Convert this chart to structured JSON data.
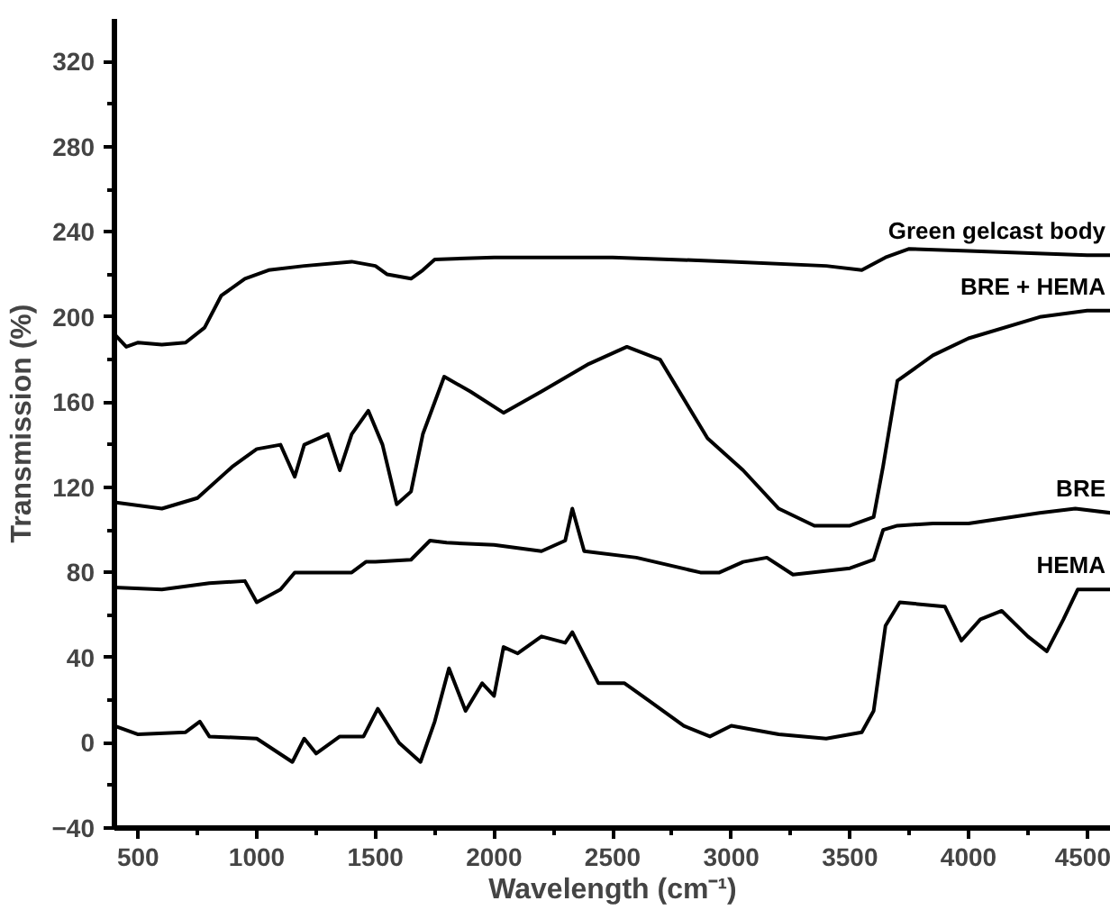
{
  "chart_data": {
    "type": "line",
    "xlabel": "Wavelength (cm⁻¹)",
    "ylabel": "Transmission (%)",
    "xlim": [
      400,
      4600
    ],
    "ylim": [
      -40,
      340
    ],
    "xticks": [
      500,
      1000,
      1500,
      2000,
      2500,
      3000,
      3500,
      4000,
      4500
    ],
    "yticks": [
      -40,
      0,
      40,
      80,
      120,
      160,
      200,
      240,
      280,
      320
    ],
    "grid": false,
    "legend": false,
    "marker": "none",
    "line_style": "solid",
    "series": [
      {
        "name": "Green gelcast body",
        "color": "#000000",
        "x": [
          400,
          450,
          500,
          600,
          700,
          780,
          850,
          950,
          1050,
          1200,
          1400,
          1500,
          1550,
          1650,
          1700,
          1750,
          2000,
          2500,
          3000,
          3400,
          3550,
          3650,
          3750,
          4000,
          4500,
          4600
        ],
        "values": [
          192,
          186,
          188,
          187,
          188,
          195,
          210,
          218,
          222,
          224,
          226,
          224,
          220,
          218,
          222,
          227,
          228,
          228,
          226,
          224,
          222,
          228,
          232,
          231,
          229,
          229
        ]
      },
      {
        "name": "BRE + HEMA",
        "color": "#000000",
        "x": [
          400,
          600,
          750,
          900,
          1000,
          1100,
          1160,
          1200,
          1300,
          1350,
          1400,
          1470,
          1530,
          1590,
          1650,
          1700,
          1790,
          1900,
          2040,
          2200,
          2400,
          2560,
          2700,
          2900,
          3050,
          3200,
          3350,
          3500,
          3600,
          3640,
          3700,
          3850,
          4000,
          4300,
          4500,
          4600
        ],
        "values": [
          113,
          110,
          115,
          130,
          138,
          140,
          125,
          140,
          145,
          128,
          145,
          156,
          140,
          112,
          118,
          145,
          172,
          165,
          155,
          165,
          178,
          186,
          180,
          143,
          128,
          110,
          102,
          102,
          106,
          130,
          170,
          182,
          190,
          200,
          203,
          203
        ]
      },
      {
        "name": "BRE",
        "color": "#000000",
        "x": [
          400,
          600,
          800,
          950,
          1000,
          1100,
          1160,
          1200,
          1400,
          1460,
          1500,
          1650,
          1730,
          1800,
          2000,
          2200,
          2300,
          2330,
          2380,
          2600,
          2870,
          2950,
          3050,
          3150,
          3260,
          3500,
          3600,
          3640,
          3700,
          3850,
          4000,
          4300,
          4450,
          4600
        ],
        "values": [
          73,
          72,
          75,
          76,
          66,
          72,
          80,
          80,
          80,
          85,
          85,
          86,
          95,
          94,
          93,
          90,
          95,
          110,
          90,
          87,
          80,
          80,
          85,
          87,
          79,
          82,
          86,
          100,
          102,
          103,
          103,
          108,
          110,
          108
        ]
      },
      {
        "name": "HEMA",
        "color": "#000000",
        "x": [
          400,
          500,
          700,
          760,
          800,
          1000,
          1150,
          1200,
          1250,
          1350,
          1450,
          1510,
          1600,
          1690,
          1750,
          1810,
          1880,
          1950,
          2000,
          2040,
          2100,
          2200,
          2300,
          2330,
          2440,
          2550,
          2650,
          2800,
          2910,
          3000,
          3200,
          3400,
          3550,
          3600,
          3650,
          3710,
          3900,
          3970,
          4050,
          4140,
          4250,
          4330,
          4400,
          4460,
          4600
        ],
        "values": [
          8,
          4,
          5,
          10,
          3,
          2,
          -9,
          2,
          -5,
          3,
          3,
          16,
          0,
          -9,
          10,
          35,
          15,
          28,
          22,
          45,
          42,
          50,
          47,
          52,
          28,
          28,
          20,
          8,
          3,
          8,
          4,
          2,
          5,
          15,
          55,
          66,
          64,
          48,
          58,
          62,
          50,
          43,
          58,
          72,
          72
        ]
      }
    ]
  }
}
